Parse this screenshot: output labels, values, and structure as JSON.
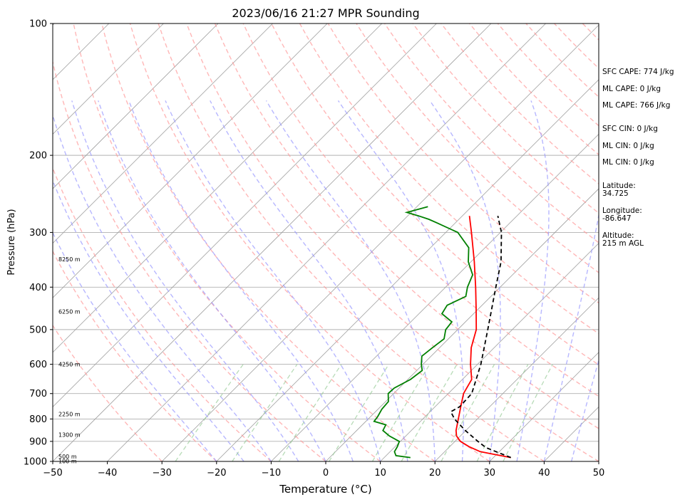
{
  "chart_data": {
    "type": "line",
    "title": "2023/06/16 21:27 MPR Sounding",
    "xlabel": "Temperature (°C)",
    "ylabel": "Pressure (hPa)",
    "xlim": [
      -50,
      50
    ],
    "ylim": [
      1000,
      100
    ],
    "y_scale": "log",
    "x_ticks": [
      "−50",
      "−40",
      "−30",
      "−20",
      "−10",
      "0",
      "10",
      "20",
      "30",
      "40",
      "50"
    ],
    "y_ticks": [
      {
        "p": 100,
        "label": "100"
      },
      {
        "p": 200,
        "label": "200"
      },
      {
        "p": 300,
        "label": "300"
      },
      {
        "p": 400,
        "label": "400"
      },
      {
        "p": 500,
        "label": "500"
      },
      {
        "p": 600,
        "label": "600"
      },
      {
        "p": 700,
        "label": "700"
      },
      {
        "p": 800,
        "label": "800"
      },
      {
        "p": 900,
        "label": "900"
      },
      {
        "p": 1000,
        "label": "1000"
      }
    ],
    "grid": true,
    "colors": {
      "temperature": "#ff0000",
      "dewpoint": "#008000",
      "parcel": "#000000",
      "isotherm": "#a0a0a0",
      "dry_adiabat": "#ff9999",
      "moist_adiabat": "#9999ff",
      "mixing_ratio": "#99cc99"
    },
    "series": [
      {
        "key": "temperature",
        "points": [
          [
            980,
            33.2
          ],
          [
            950,
            26.5
          ],
          [
            925,
            23.5
          ],
          [
            900,
            21.0
          ],
          [
            875,
            19.3
          ],
          [
            850,
            18.2
          ],
          [
            800,
            16.5
          ],
          [
            750,
            14.7
          ],
          [
            700,
            12.8
          ],
          [
            650,
            11.7
          ],
          [
            600,
            8.7
          ],
          [
            550,
            5.8
          ],
          [
            500,
            3.4
          ],
          [
            450,
            -0.3
          ],
          [
            400,
            -4.5
          ],
          [
            350,
            -9.4
          ],
          [
            300,
            -15.3
          ],
          [
            275,
            -18.7
          ]
        ]
      },
      {
        "key": "dewpoint",
        "points": [
          [
            980,
            14.8
          ],
          [
            970,
            11.8
          ],
          [
            950,
            10.8
          ],
          [
            925,
            10.4
          ],
          [
            900,
            9.8
          ],
          [
            875,
            7.0
          ],
          [
            850,
            4.8
          ],
          [
            825,
            4.3
          ],
          [
            810,
            1.5
          ],
          [
            790,
            1.3
          ],
          [
            760,
            0.7
          ],
          [
            730,
            0.5
          ],
          [
            700,
            -1.0
          ],
          [
            680,
            -0.9
          ],
          [
            650,
            0.5
          ],
          [
            620,
            1.0
          ],
          [
            600,
            -0.3
          ],
          [
            575,
            -1.7
          ],
          [
            550,
            -1.3
          ],
          [
            525,
            -0.8
          ],
          [
            500,
            -2.2
          ],
          [
            480,
            -2.5
          ],
          [
            460,
            -5.8
          ],
          [
            440,
            -6.4
          ],
          [
            420,
            -4.6
          ],
          [
            400,
            -6.0
          ],
          [
            375,
            -7.3
          ],
          [
            350,
            -10.5
          ],
          [
            325,
            -13.0
          ],
          [
            300,
            -17.8
          ],
          [
            285,
            -23.5
          ],
          [
            280,
            -25.5
          ],
          [
            275,
            -28.0
          ],
          [
            270,
            -30.8
          ],
          [
            262,
            -28.0
          ]
        ]
      },
      {
        "key": "parcel",
        "points": [
          [
            980,
            33.2
          ],
          [
            930,
            26.8
          ],
          [
            900,
            24.2
          ],
          [
            850,
            19.9
          ],
          [
            800,
            15.8
          ],
          [
            770,
            13.8
          ],
          [
            750,
            14.5
          ],
          [
            700,
            14.3
          ],
          [
            600,
            10.6
          ],
          [
            500,
            5.5
          ],
          [
            400,
            -0.8
          ],
          [
            350,
            -4.5
          ],
          [
            300,
            -9.8
          ],
          [
            275,
            -13.5
          ]
        ]
      }
    ],
    "height_labels": [
      {
        "p": 998,
        "label": "100 m"
      },
      {
        "p": 975,
        "label": "500 m"
      },
      {
        "p": 869,
        "label": "1300 m"
      },
      {
        "p": 779,
        "label": "2250 m"
      },
      {
        "p": 600,
        "label": "4250 m"
      },
      {
        "p": 455,
        "label": "6250 m"
      },
      {
        "p": 345,
        "label": "8250 m"
      }
    ],
    "annotations": [
      "SFC CAPE: 774 J/kg",
      "ML CAPE: 0 J/kg",
      "ML CAPE: 766 J/kg",
      "SFC CIN: 0 J/kg",
      "ML CIN: 0 J/kg",
      "ML CIN: 0 J/kg",
      "Latitude:",
      "34.725",
      "Longitude:",
      "-86.647",
      "Altitude:",
      "215 m AGL"
    ]
  }
}
